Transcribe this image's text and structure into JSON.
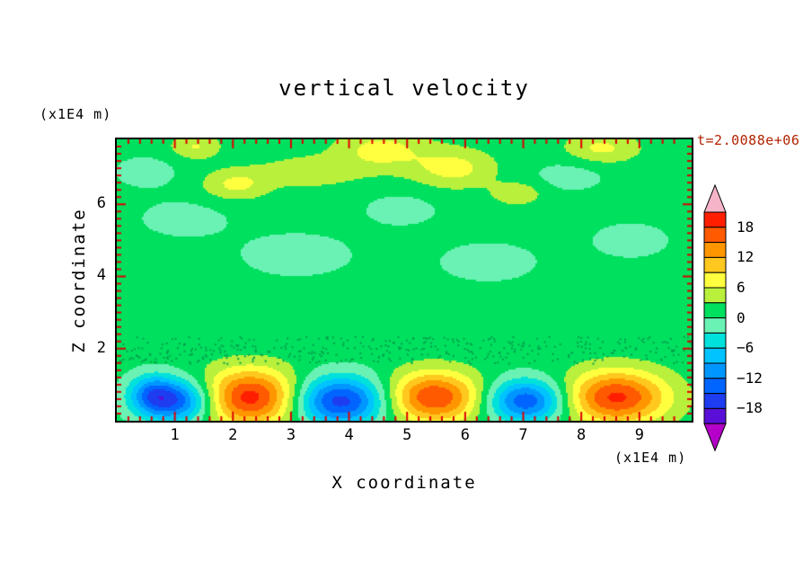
{
  "title": "vertical velocity",
  "time_label": "t=2.0088e+06",
  "axes": {
    "x_label": "X coordinate",
    "x_unit_label": "(x1E4 m)",
    "y_label": "Z coordinate",
    "y_unit_label": "(x1E4 m)",
    "x_ticks": [
      1,
      2,
      3,
      4,
      5,
      6,
      7,
      8,
      9
    ],
    "y_ticks": [
      2,
      4,
      6
    ]
  },
  "colors": {
    "frame": "#000000",
    "tick": "#dd0000",
    "time_label": "#b22200",
    "text": "#000000",
    "background": "#ffffff"
  },
  "colorbar": {
    "levels": [
      -21,
      -18,
      -15,
      -12,
      -9,
      -6,
      -3,
      0,
      3,
      6,
      9,
      12,
      15,
      18,
      21
    ],
    "cell_colors_low_to_high": [
      "#5a0fd8",
      "#1e3cf0",
      "#0064ff",
      "#0096ff",
      "#00c3ff",
      "#00e1dc",
      "#69f2b4",
      "#00e05f",
      "#b9f03c",
      "#ffff3f",
      "#ffc81e",
      "#ff9600",
      "#ff5a00",
      "#ff1e00"
    ],
    "below_color": "#b400c8",
    "above_color": "#f5b4c8",
    "tick_labels": [
      "18",
      "12",
      "6",
      "0",
      "−6",
      "−12",
      "−18"
    ],
    "tick_values": [
      18,
      12,
      6,
      0,
      -6,
      -12,
      -18
    ]
  },
  "chart_data": {
    "type": "heatmap",
    "title": "vertical velocity",
    "xlabel": "X coordinate (x1E4 m)",
    "ylabel": "Z coordinate (x1E4 m)",
    "time": "t=2.0088e+06",
    "x_range": [
      0,
      9.9
    ],
    "z_range": [
      0,
      7.8
    ],
    "value_range": [
      -21,
      21
    ],
    "contour_interval": 3,
    "background_value": 1.2,
    "description": "Mostly near-zero (green) field with an alternating wave train of strong updrafts (orange/red, ~+18) and downdrafts (blue, ~-18) near the bottom boundary, plus weak patches aloft.",
    "blobs": [
      {
        "x": 0.6,
        "z": 0.75,
        "amp": -9,
        "rx": 0.28,
        "rz": 0.38
      },
      {
        "x": 1.05,
        "z": 0.55,
        "amp": -16,
        "rx": 0.45,
        "rz": 0.42
      },
      {
        "x": 2.3,
        "z": 0.65,
        "amp": 18.5,
        "rx": 0.6,
        "rz": 0.55
      },
      {
        "x": 3.85,
        "z": 0.55,
        "amp": -18,
        "rx": 0.58,
        "rz": 0.48
      },
      {
        "x": 5.45,
        "z": 0.65,
        "amp": 17,
        "rx": 0.58,
        "rz": 0.5
      },
      {
        "x": 7.05,
        "z": 0.55,
        "amp": -16,
        "rx": 0.48,
        "rz": 0.42
      },
      {
        "x": 8.6,
        "z": 0.65,
        "amp": 17.5,
        "rx": 0.62,
        "rz": 0.52
      },
      {
        "x": 2.05,
        "z": 6.55,
        "amp": 5.5,
        "rx": 0.4,
        "rz": 0.3
      },
      {
        "x": 4.55,
        "z": 7.5,
        "amp": 6,
        "rx": 0.55,
        "rz": 0.4
      },
      {
        "x": 5.8,
        "z": 7.0,
        "amp": 6,
        "rx": 0.5,
        "rz": 0.38
      },
      {
        "x": 8.35,
        "z": 7.55,
        "amp": 5.5,
        "rx": 0.45,
        "rz": 0.3
      },
      {
        "x": 1.35,
        "z": 7.6,
        "amp": 5,
        "rx": 0.3,
        "rz": 0.25
      },
      {
        "x": 6.9,
        "z": 6.3,
        "amp": 4.5,
        "rx": 0.3,
        "rz": 0.22
      },
      {
        "x": 3.3,
        "z": 6.9,
        "amp": 4,
        "rx": 0.6,
        "rz": 0.3
      },
      {
        "x": 3.1,
        "z": 4.6,
        "amp": -2.4,
        "rx": 0.8,
        "rz": 0.5
      },
      {
        "x": 1.15,
        "z": 5.6,
        "amp": -2.4,
        "rx": 0.6,
        "rz": 0.4
      },
      {
        "x": 6.4,
        "z": 4.4,
        "amp": -2.4,
        "rx": 0.7,
        "rz": 0.45
      },
      {
        "x": 8.85,
        "z": 5.0,
        "amp": -2.4,
        "rx": 0.55,
        "rz": 0.4
      },
      {
        "x": 4.9,
        "z": 5.85,
        "amp": -2.4,
        "rx": 0.5,
        "rz": 0.35
      },
      {
        "x": 0.5,
        "z": 6.9,
        "amp": -2.4,
        "rx": 0.45,
        "rz": 0.35
      },
      {
        "x": 7.8,
        "z": 6.8,
        "amp": -2.4,
        "rx": 0.5,
        "rz": 0.35
      }
    ],
    "speckle_band": {
      "z_min": 1.6,
      "z_max": 2.35,
      "color": "#00a14b",
      "dots": 420
    }
  }
}
